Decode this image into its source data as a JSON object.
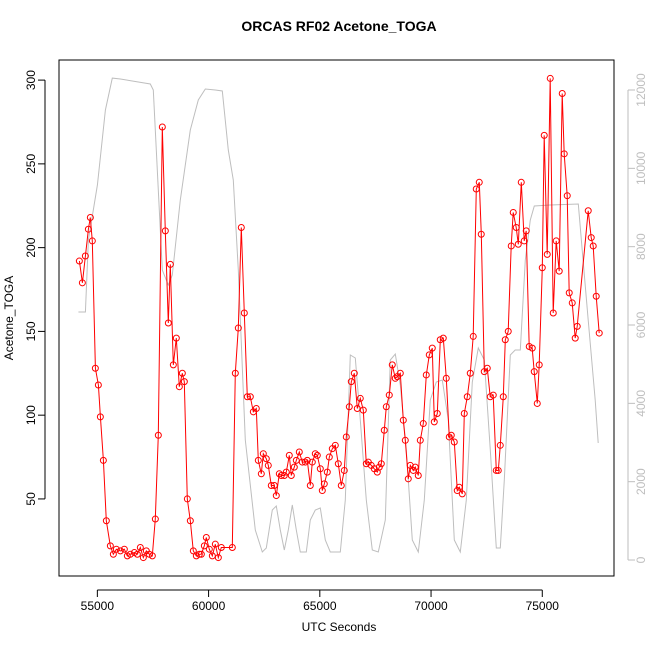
{
  "chart_data": {
    "type": "line",
    "title": "ORCAS RF02 Acetone_TOGA",
    "x_label": "UTC Seconds",
    "y_label": "Acetone_TOGA",
    "xlim": [
      53276,
      78224
    ],
    "xticks": [
      55000,
      60000,
      65000,
      70000,
      75000
    ],
    "ylim": [
      4,
      312
    ],
    "yticks": [
      50,
      100,
      150,
      200,
      250,
      300
    ],
    "y2lim": [
      -408,
      12766
    ],
    "y2ticks": [
      0,
      2000,
      4000,
      6000,
      8000,
      10000,
      12000
    ],
    "series": [
      {
        "color": "#ff0000",
        "markers": true,
        "x": [
          54191,
          54326,
          54461,
          54596,
          54685,
          54775,
          54910,
          55045,
          55135,
          55270,
          55404,
          55584,
          55719,
          55854,
          56034,
          56213,
          56348,
          56483,
          56663,
          56798,
          56932,
          57067,
          57202,
          57337,
          57472,
          57607,
          57741,
          57921,
          58056,
          58191,
          58281,
          58415,
          58550,
          58685,
          58820,
          58910,
          59045,
          59179,
          59314,
          59449,
          59584,
          59674,
          59809,
          59898,
          60033,
          60168,
          60303,
          60438,
          60573,
          61067,
          61202,
          61337,
          61471,
          61606,
          61741,
          61876,
          62011,
          62145,
          62235,
          62370,
          62460,
          62595,
          62684,
          62819,
          62954,
          63044,
          63179,
          63269,
          63404,
          63493,
          63628,
          63718,
          63853,
          63943,
          64078,
          64213,
          64348,
          64437,
          64572,
          64662,
          64797,
          64887,
          65022,
          65112,
          65201,
          65336,
          65426,
          65561,
          65696,
          65831,
          65965,
          66100,
          66190,
          66325,
          66415,
          66550,
          66684,
          66819,
          66954,
          67089,
          67179,
          67314,
          67448,
          67583,
          67673,
          67763,
          67898,
          67988,
          68122,
          68257,
          68392,
          68482,
          68617,
          68752,
          68842,
          68976,
          69066,
          69201,
          69291,
          69426,
          69516,
          69650,
          69785,
          69920,
          70055,
          70145,
          70280,
          70414,
          70549,
          70684,
          70819,
          70909,
          71044,
          71178,
          71268,
          71403,
          71493,
          71628,
          71763,
          71897,
          72032,
          72167,
          72257,
          72392,
          72527,
          72661,
          72796,
          72931,
          73021,
          73111,
          73246,
          73336,
          73470,
          73605,
          73695,
          73830,
          73920,
          74055,
          74189,
          74279,
          74414,
          74549,
          74639,
          74774,
          74863,
          75000,
          75088,
          75223,
          75358,
          75493,
          75627,
          75762,
          75897,
          75987,
          76122,
          76212,
          76347,
          76481,
          76571,
          77066,
          77200,
          77290,
          77425,
          77560
        ],
        "values": [
          192,
          179,
          195,
          211,
          218,
          204,
          128,
          118,
          99,
          73,
          37,
          22,
          17,
          20,
          19,
          20,
          16,
          17,
          18,
          17,
          21,
          15,
          19,
          17,
          16,
          38,
          88,
          272,
          210,
          155,
          190,
          130,
          146,
          117,
          125,
          120,
          50,
          37,
          19,
          16,
          17,
          17,
          22,
          27,
          20,
          16,
          23,
          15,
          21,
          21,
          125,
          152,
          212,
          161,
          111,
          111,
          102,
          104,
          73,
          65,
          77,
          74,
          70,
          58,
          58,
          52,
          65,
          64,
          64,
          66,
          76,
          64,
          69,
          73,
          78,
          72,
          72,
          73,
          58,
          72,
          77,
          76,
          68,
          55,
          59,
          66,
          75,
          80,
          82,
          71,
          58,
          67,
          87,
          105,
          120,
          125,
          104,
          110,
          103,
          71,
          72,
          70,
          68,
          66,
          69,
          71,
          91,
          105,
          112,
          130,
          122,
          123,
          125,
          97,
          85,
          62,
          70,
          67,
          69,
          64,
          85,
          95,
          124,
          136,
          140,
          96,
          101,
          145,
          146,
          122,
          87,
          88,
          84,
          55,
          57,
          53,
          101,
          111,
          125,
          147,
          235,
          239,
          208,
          126,
          128,
          111,
          112,
          67,
          67,
          82,
          111,
          145,
          150,
          201,
          221,
          212,
          202,
          239,
          204,
          210,
          141,
          140,
          126,
          107,
          130,
          188,
          267,
          196,
          301,
          161,
          204,
          186,
          292,
          256,
          231,
          173,
          167,
          146,
          153,
          222,
          206,
          201,
          171,
          149
        ]
      },
      {
        "color": "#bebebe",
        "axis": "y2",
        "markers": false,
        "x": [
          54146,
          54461,
          54596,
          55000,
          55360,
          55674,
          56034,
          57382,
          57517,
          57741,
          57921,
          58191,
          58371,
          58730,
          59179,
          59539,
          59854,
          60303,
          60618,
          60887,
          61112,
          61337,
          61651,
          62101,
          62415,
          62595,
          62865,
          63044,
          63224,
          63404,
          63584,
          63764,
          63943,
          64123,
          64393,
          64573,
          64797,
          65022,
          65247,
          65471,
          65921,
          66145,
          66370,
          66595,
          66820,
          67089,
          67359,
          67628,
          67943,
          68168,
          68393,
          68617,
          68887,
          69157,
          69426,
          69696,
          69966,
          70235,
          70505,
          70775,
          71044,
          71314,
          71584,
          71853,
          72123,
          72392,
          72662,
          72932,
          73111,
          73291,
          73561,
          73785,
          74010,
          74235,
          74460,
          74640,
          75358,
          76617,
          76796,
          77066,
          77381,
          77515
        ],
        "values": [
          6331,
          6331,
          8170,
          9574,
          11489,
          12305,
          12280,
          12152,
          11999,
          9446,
          7404,
          7021,
          7276,
          9191,
          10978,
          11744,
          12025,
          11999,
          11974,
          10467,
          9701,
          7404,
          3064,
          766,
          204,
          306,
          1277,
          1379,
          766,
          255,
          766,
          1404,
          766,
          204,
          204,
          1021,
          1277,
          1328,
          511,
          204,
          204,
          1532,
          5234,
          5157,
          3574,
          1532,
          255,
          204,
          1021,
          5106,
          5259,
          4468,
          2808,
          511,
          204,
          1532,
          4085,
          4544,
          4595,
          3574,
          511,
          204,
          1532,
          4544,
          5412,
          5106,
          2808,
          306,
          306,
          2042,
          5234,
          5361,
          5361,
          7659,
          8680,
          9038,
          9063,
          9089,
          7914,
          6127,
          4085,
          2987
        ]
      }
    ]
  }
}
